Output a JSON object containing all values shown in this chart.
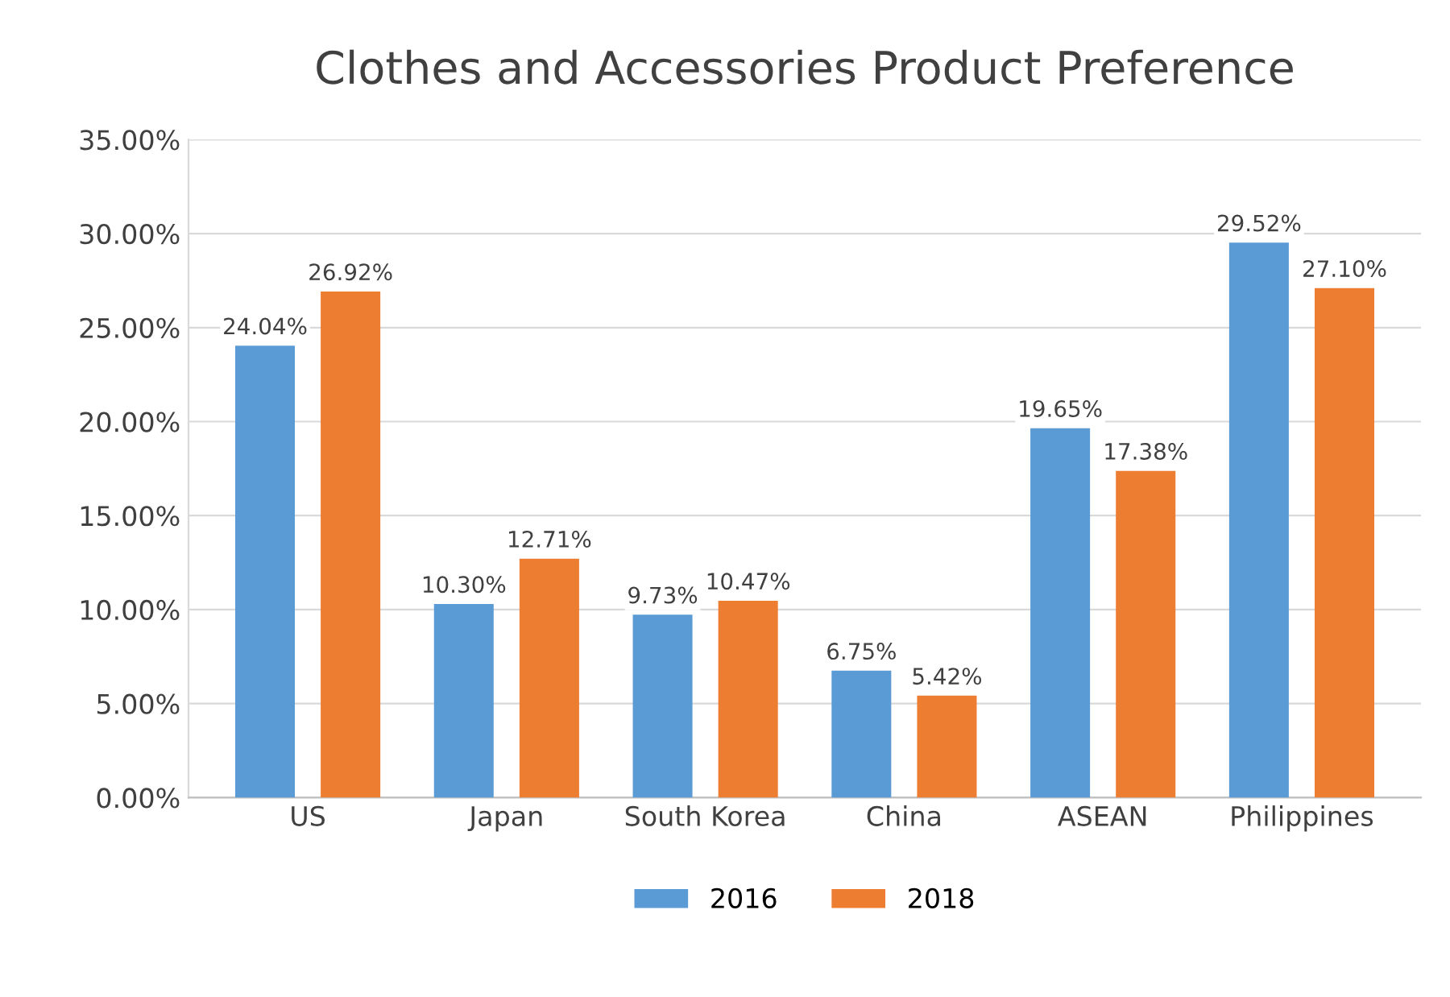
{
  "chart_data": {
    "type": "bar",
    "title": "Clothes and Accessories Product Preference",
    "categories": [
      "US",
      "Japan",
      "South Korea",
      "China",
      "ASEAN",
      "Philippines"
    ],
    "series": [
      {
        "name": "2016",
        "color": "#5b9bd5",
        "values": [
          24.04,
          10.3,
          9.73,
          6.75,
          19.65,
          29.52
        ],
        "value_labels": [
          "24.04%",
          "10.30%",
          "9.73%",
          "6.75%",
          "19.65%",
          "29.52%"
        ]
      },
      {
        "name": "2018",
        "color": "#ed7d31",
        "values": [
          26.92,
          12.71,
          10.47,
          5.42,
          17.38,
          27.1
        ],
        "value_labels": [
          "26.92%",
          "12.71%",
          "10.47%",
          "5.42%",
          "17.38%",
          "27.10%"
        ]
      }
    ],
    "ylim": [
      0,
      35
    ],
    "yticks": [
      {
        "value": 0,
        "label": "0.00%"
      },
      {
        "value": 5,
        "label": "5.00%"
      },
      {
        "value": 10,
        "label": "10.00%"
      },
      {
        "value": 15,
        "label": "15.00%"
      },
      {
        "value": 20,
        "label": "20.00%"
      },
      {
        "value": 25,
        "label": "25.00%"
      },
      {
        "value": 30,
        "label": "30.00%"
      },
      {
        "value": 35,
        "label": "35.00%"
      }
    ],
    "grid": "y",
    "legend": "bottom"
  }
}
